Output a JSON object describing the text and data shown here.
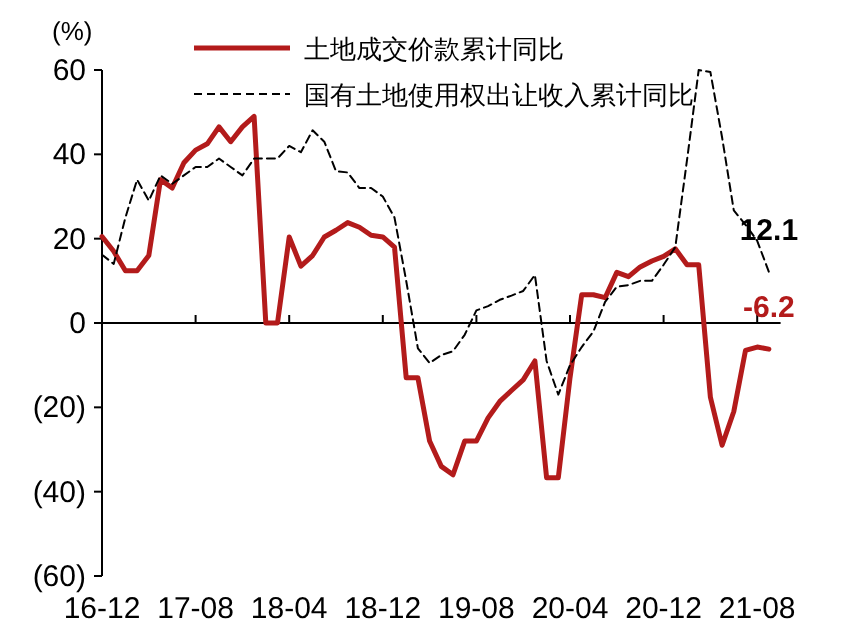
{
  "chart_data": {
    "type": "line",
    "ylabel": "(%)",
    "categories": [
      "16-12",
      null,
      null,
      null,
      null,
      null,
      null,
      null,
      "17-08",
      null,
      null,
      null,
      null,
      null,
      null,
      null,
      "18-04",
      null,
      null,
      null,
      null,
      null,
      null,
      null,
      "18-12",
      null,
      null,
      null,
      null,
      null,
      null,
      null,
      "19-08",
      null,
      null,
      null,
      null,
      null,
      null,
      null,
      "20-04",
      null,
      null,
      null,
      null,
      null,
      null,
      null,
      "20-12",
      null,
      null,
      null,
      null,
      null,
      null,
      null,
      "21-08",
      null
    ],
    "series": [
      {
        "name": "土地成交价款累计同比",
        "color": "#b31b1b",
        "line_style": "solid",
        "values": [
          20.5,
          17,
          12.4,
          12.4,
          16,
          34,
          32,
          38,
          41,
          42.5,
          46.5,
          43,
          46.5,
          49,
          0,
          0,
          20.4,
          13.5,
          16,
          20.4,
          22,
          23.8,
          22.7,
          20.8,
          20.4,
          18,
          -13,
          -13,
          -28,
          -34,
          -36,
          -28,
          -28,
          -22.5,
          -18.6,
          -16,
          -13.5,
          -9,
          -36.7,
          -36.7,
          -13,
          6.7,
          6.7,
          6,
          12,
          11,
          13.3,
          14.7,
          15.8,
          17.6,
          13.8,
          13.8,
          -17.6,
          -29,
          -21,
          -6.5,
          -5.7,
          -6.2
        ],
        "value_labels": [
          null,
          null,
          null,
          null,
          null,
          null,
          null,
          null,
          null,
          null,
          null,
          null,
          null,
          null,
          null,
          null,
          null,
          null,
          null,
          null,
          null,
          null,
          null,
          null,
          null,
          null,
          null,
          null,
          null,
          null,
          null,
          null,
          null,
          null,
          null,
          null,
          null,
          null,
          null,
          null,
          null,
          null,
          null,
          null,
          null,
          null,
          null,
          null,
          null,
          null,
          null,
          null,
          null,
          null,
          null,
          null,
          null,
          "-6.2"
        ]
      },
      {
        "name": "国有土地使用权出让收入累计同比",
        "color": "#000000",
        "line_style": "dashed",
        "values": [
          16.2,
          14,
          25,
          34,
          29,
          35,
          33,
          35,
          37,
          37,
          39,
          37,
          35,
          39,
          39,
          39,
          42,
          40.5,
          45.7,
          43,
          36,
          35.7,
          32,
          32,
          30,
          25,
          10,
          -6,
          -9.5,
          -7.6,
          -6.7,
          -2.8,
          3,
          4,
          5.5,
          6.5,
          7.6,
          11.4,
          -9,
          -17,
          -10,
          -5.7,
          -2,
          5,
          8.6,
          9,
          10,
          10,
          13.8,
          18,
          38.6,
          60,
          59.5,
          44,
          26.7,
          23.3,
          19.5,
          12.1
        ],
        "value_labels": [
          null,
          null,
          null,
          null,
          null,
          null,
          null,
          null,
          null,
          null,
          null,
          null,
          null,
          null,
          null,
          null,
          null,
          null,
          null,
          null,
          null,
          null,
          null,
          null,
          null,
          null,
          null,
          null,
          null,
          null,
          null,
          null,
          null,
          null,
          null,
          null,
          null,
          null,
          null,
          null,
          null,
          null,
          null,
          null,
          null,
          null,
          null,
          null,
          null,
          null,
          null,
          null,
          null,
          null,
          null,
          null,
          null,
          "12.1"
        ]
      }
    ],
    "ylim": [
      -60,
      60
    ],
    "yticks": [
      60,
      40,
      20,
      0,
      {
        "value": -20,
        "label": "(20)"
      },
      {
        "value": -40,
        "label": "(40)"
      },
      {
        "value": -60,
        "label": "(60)"
      }
    ],
    "legend": "top"
  }
}
